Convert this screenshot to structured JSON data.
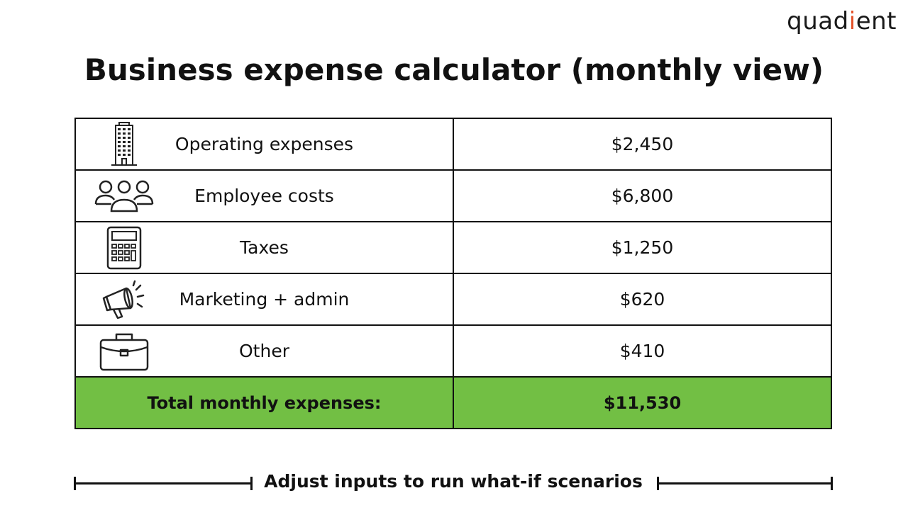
{
  "brand": {
    "logo_prefix": "quad",
    "logo_accent": "i",
    "logo_suffix": "ent",
    "accent_color": "#e4532b"
  },
  "title": "Business expense calculator (monthly view)",
  "table": {
    "rows": [
      {
        "icon": "office-building-icon",
        "label": "Operating expenses",
        "value": "$2,450"
      },
      {
        "icon": "people-group-icon",
        "label": "Employee costs",
        "value": "$6,800"
      },
      {
        "icon": "calculator-icon",
        "label": "Taxes",
        "value": "$1,250"
      },
      {
        "icon": "megaphone-icon",
        "label": "Marketing + admin",
        "value": "$620"
      },
      {
        "icon": "briefcase-icon",
        "label": "Other",
        "value": "$410"
      }
    ],
    "total": {
      "label": "Total monthly expenses:",
      "value": "$11,530",
      "color": "#72bf44"
    }
  },
  "footer": {
    "note": "Adjust inputs to run what-if scenarios"
  }
}
